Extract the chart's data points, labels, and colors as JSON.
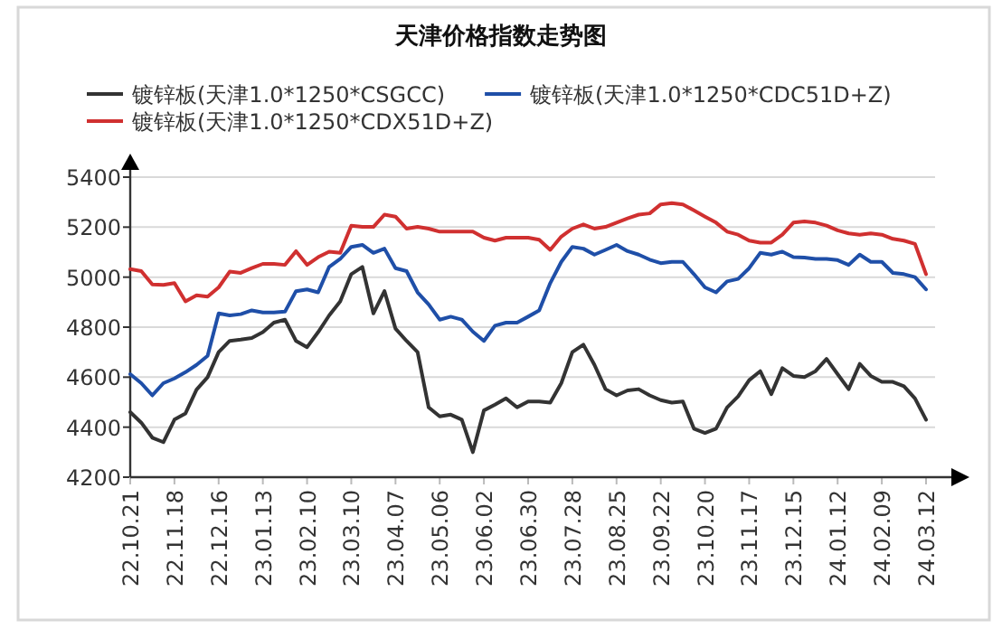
{
  "chart_data": {
    "type": "line",
    "title": "天津价格指数走势图",
    "categories": [
      "22.10.21",
      null,
      null,
      null,
      "22.11.18",
      null,
      null,
      null,
      "22.12.16",
      null,
      null,
      null,
      "23.01.13",
      null,
      null,
      null,
      "23.02.10",
      null,
      null,
      null,
      "23.03.10",
      null,
      null,
      null,
      "23.04.07",
      null,
      null,
      null,
      "23.05.06",
      null,
      null,
      null,
      "23.06.02",
      null,
      null,
      null,
      "23.06.30",
      null,
      null,
      null,
      "23.07.28",
      null,
      null,
      null,
      "23.08.25",
      null,
      null,
      null,
      "23.09.22",
      null,
      null,
      null,
      "23.10.20",
      null,
      null,
      null,
      "23.11.17",
      null,
      null,
      null,
      "23.12.15",
      null,
      null,
      null,
      "24.01.12",
      null,
      null,
      null,
      "24.02.09",
      null,
      null,
      null,
      "24.03.12"
    ],
    "series": [
      {
        "name": "镀锌板(天津1.0*1250*CSGCC)",
        "color": "#333333",
        "values": [
          4460,
          4418,
          4358,
          4340,
          4430,
          4455,
          4550,
          4600,
          4700,
          4745,
          4750,
          4757,
          4780,
          4818,
          4830,
          4745,
          4720,
          4780,
          4847,
          4903,
          5012,
          5041,
          4855,
          4944,
          4794,
          4745,
          4700,
          4479,
          4443,
          4450,
          4430,
          4300,
          4467,
          4490,
          4515,
          4479,
          4503,
          4503,
          4498,
          4576,
          4700,
          4730,
          4649,
          4552,
          4527,
          4547,
          4552,
          4527,
          4508,
          4498,
          4503,
          4394,
          4377,
          4394,
          4479,
          4523,
          4588,
          4624,
          4532,
          4636,
          4605,
          4600,
          4624,
          4673,
          4612,
          4552,
          4653,
          4605,
          4581,
          4581,
          4564,
          4515,
          4430
        ]
      },
      {
        "name": "镀锌板(天津1.0*1250*CDC51D+Z)",
        "color": "#1f4fa8",
        "values": [
          4612,
          4576,
          4527,
          4576,
          4595,
          4620,
          4649,
          4685,
          4855,
          4847,
          4852,
          4867,
          4859,
          4859,
          4862,
          4944,
          4951,
          4939,
          5041,
          5073,
          5121,
          5129,
          5097,
          5114,
          5036,
          5024,
          4939,
          4891,
          4830,
          4842,
          4830,
          4782,
          4745,
          4806,
          4818,
          4818,
          4842,
          4867,
          4976,
          5061,
          5121,
          5114,
          5090,
          5109,
          5129,
          5104,
          5090,
          5070,
          5056,
          5061,
          5061,
          5012,
          4959,
          4939,
          4983,
          4993,
          5036,
          5097,
          5090,
          5102,
          5080,
          5078,
          5073,
          5073,
          5068,
          5049,
          5090,
          5061,
          5061,
          5017,
          5012,
          5000,
          4951
        ]
      },
      {
        "name": "镀锌板(天津1.0*1250*CDX51D+Z)",
        "color": "#d03030",
        "values": [
          5032,
          5024,
          4971,
          4969,
          4976,
          4903,
          4927,
          4922,
          4959,
          5022,
          5017,
          5036,
          5053,
          5053,
          5049,
          5104,
          5049,
          5080,
          5102,
          5097,
          5206,
          5201,
          5201,
          5250,
          5242,
          5194,
          5201,
          5194,
          5182,
          5182,
          5182,
          5182,
          5158,
          5146,
          5158,
          5158,
          5158,
          5150,
          5109,
          5162,
          5194,
          5211,
          5194,
          5201,
          5218,
          5235,
          5250,
          5255,
          5291,
          5296,
          5291,
          5267,
          5242,
          5218,
          5182,
          5170,
          5146,
          5138,
          5138,
          5170,
          5218,
          5223,
          5218,
          5206,
          5187,
          5175,
          5170,
          5175,
          5170,
          5153,
          5146,
          5133,
          5012
        ]
      }
    ],
    "ylim": [
      4200,
      5400
    ],
    "yticks": [
      4200,
      4400,
      4600,
      4800,
      5000,
      5200,
      5400
    ],
    "grid": "y",
    "legend": "top",
    "line_style": "solid",
    "marker": "none"
  }
}
